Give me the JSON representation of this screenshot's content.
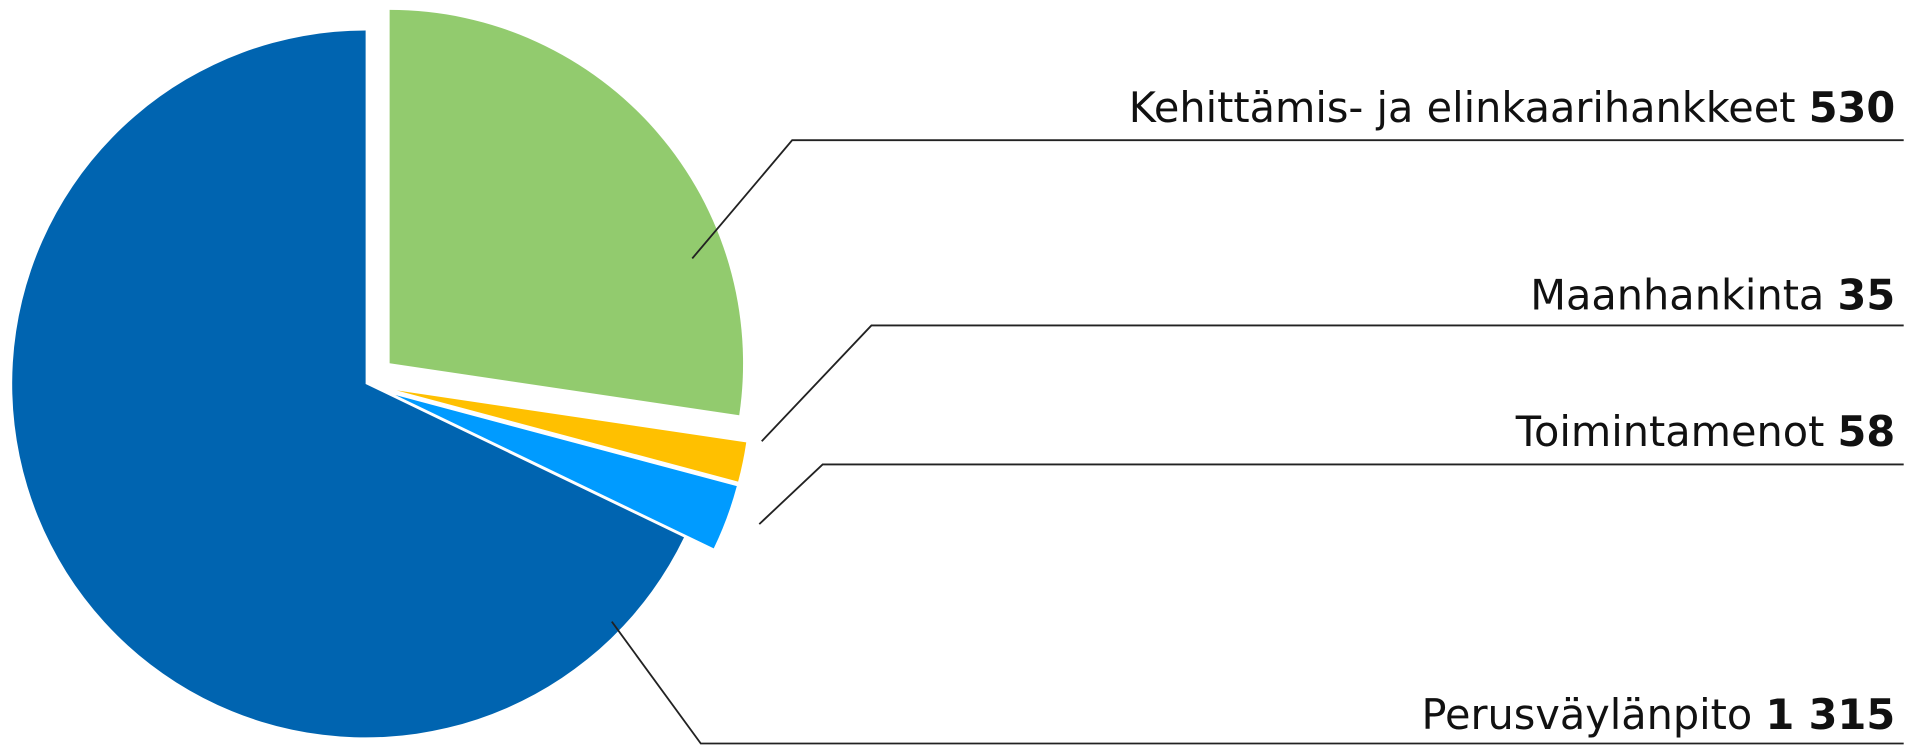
{
  "chart_data": {
    "type": "pie",
    "categories": [
      "Kehittämis- ja elinkaarihankkeet",
      "Maanhankinta",
      "Toimintamenot",
      "Perusväylänpito"
    ],
    "values": [
      530,
      35,
      58,
      1315
    ],
    "value_labels": [
      "530",
      "35",
      "58",
      "1 315"
    ],
    "colors": [
      "#92cb6e",
      "#ffc000",
      "#009bff",
      "#0064b0"
    ]
  }
}
